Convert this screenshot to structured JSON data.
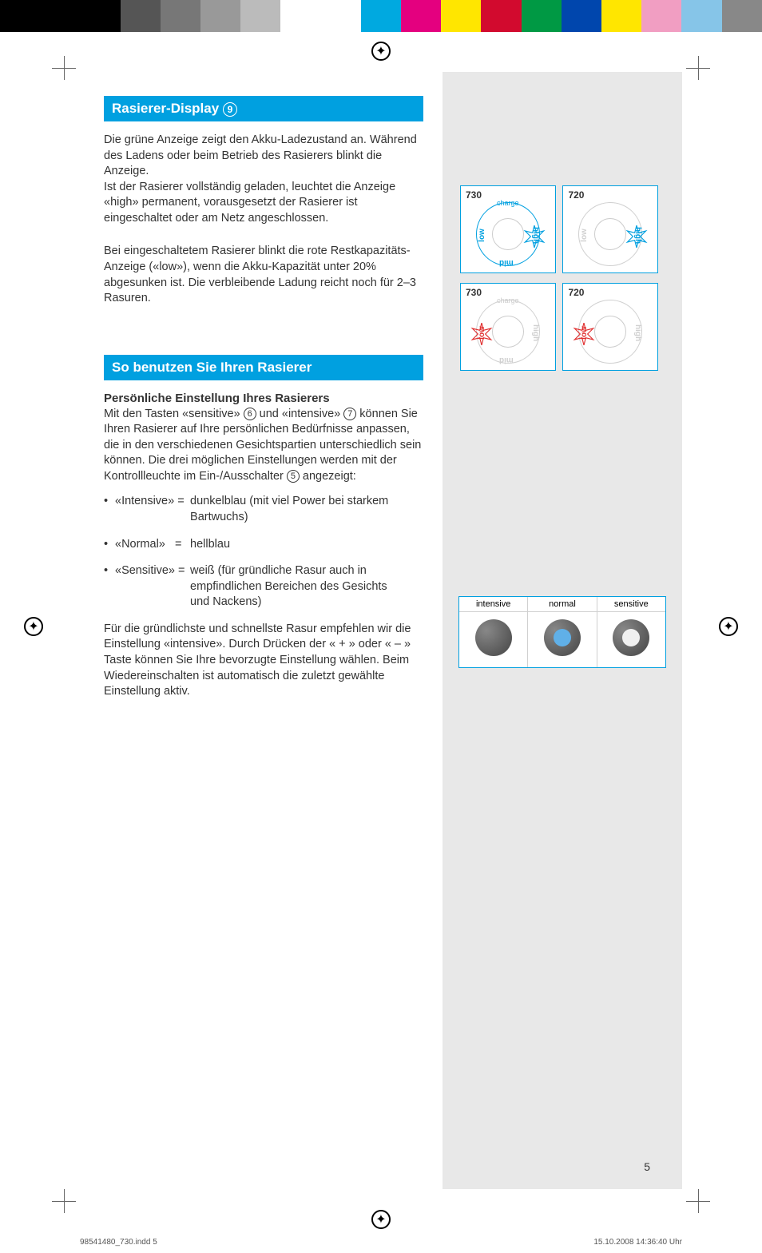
{
  "colorBar": [
    "#000000",
    "#000000",
    "#000000",
    "#555555",
    "#777777",
    "#999999",
    "#bbbbbb",
    "#ffffff",
    "#ffffff",
    "#00a9e0",
    "#e4007f",
    "#ffe600",
    "#d20a2e",
    "#009944",
    "#0046ad",
    "#ffe600",
    "#f19ec2",
    "#86c5e8",
    "#888888"
  ],
  "heading1": "Rasierer-Display",
  "heading1_ref": "9",
  "para1": "Die grüne Anzeige zeigt den Akku-Ladezustand an. Während des Ladens oder beim Betrieb des Rasierers blinkt die Anzeige.\nIst der Rasierer vollständig geladen, leuchtet die Anzeige «high» permanent, vorausgesetzt der Rasierer ist eingeschaltet oder am Netz angeschlossen.",
  "para2": "Bei eingeschaltetem Rasierer blinkt die rote Restkapazitäts-Anzeige («low»), wenn die Akku-Kapazität unter 20% abgesunken ist. Die verbleibende Ladung reicht noch für 2–3 Rasuren.",
  "heading2": "So benutzen Sie Ihren Rasierer",
  "subheading": "Persönliche Einstellung Ihres Rasierers",
  "para3a": "Mit den Tasten «sensitive» ",
  "para3_ref1": "6",
  "para3b": " und «intensive» ",
  "para3_ref2": "7",
  "para3c": " können Sie Ihren Rasierer auf Ihre persönlichen Bedürfnisse anpassen, die in den verschiedenen Gesichtspartien unterschiedlich sein können. Die drei möglichen Einstellungen werden mit der Kontrollleuchte im Ein-/Ausschalter ",
  "para3_ref3": "5",
  "para3d": " angezeigt:",
  "bullets": [
    {
      "label": "«Intensive»",
      "eq": "=",
      "desc": "dunkelblau (mit viel Power bei starkem Bartwuchs)"
    },
    {
      "label": "«Normal»",
      "eq": "=",
      "desc": "hellblau"
    },
    {
      "label": "«Sensitive»",
      "eq": "=",
      "desc": "weiß (für gründliche Rasur auch in empfindlichen Bereichen des Gesichts und Nackens)"
    }
  ],
  "para4": "Für die gründlichste und schnellste Rasur empfehlen wir die Einstellung «intensive». Durch Drücken der « + » oder « – » Taste können Sie Ihre bevorzugte Einstellung wählen. Beim Wiedereinschalten ist automatisch die zuletzt gewählte Einstellung aktiv.",
  "diagrams": {
    "row1": [
      {
        "model": "730",
        "charge": "charge",
        "low": "low",
        "high": "high",
        "mid": "mid"
      },
      {
        "model": "720",
        "low": "low",
        "high": "high"
      }
    ],
    "row2": [
      {
        "model": "730",
        "charge": "charge",
        "low": "low",
        "high": "high",
        "mid": "mid"
      },
      {
        "model": "720",
        "low": "low",
        "high": "high"
      }
    ]
  },
  "modes": {
    "labels": [
      "intensive",
      "normal",
      "sensitive"
    ],
    "colors": [
      "#2050a0",
      "#60b0e8",
      "#f0f0f0"
    ]
  },
  "pageNumber": "5",
  "footerLeft": "98541480_730.indd   5",
  "footerRight": "15.10.2008   14:36:40 Uhr"
}
